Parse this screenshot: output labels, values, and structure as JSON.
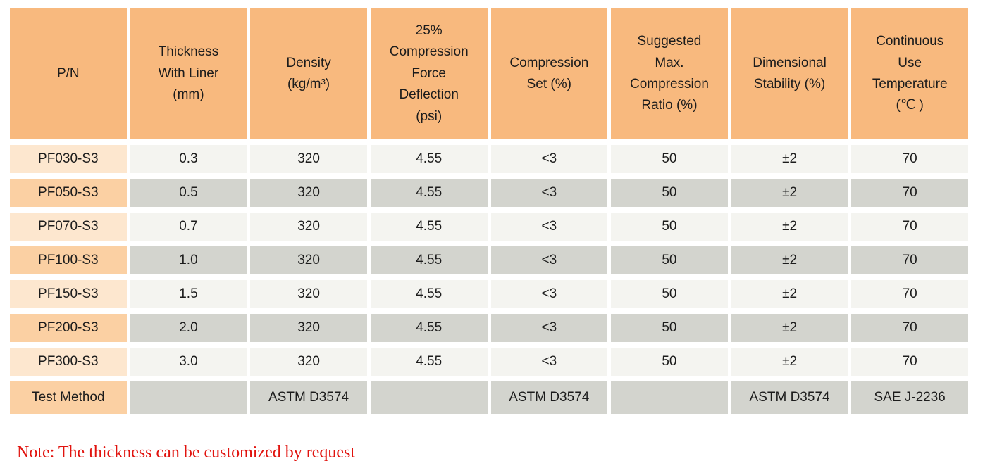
{
  "colors": {
    "header_bg": "#F8B97E",
    "pn_odd_bg": "#FDE7CF",
    "pn_even_bg": "#FBD0A3",
    "data_odd_bg": "#F4F4F0",
    "data_even_bg": "#D3D4CE",
    "note_red": "#E1130E",
    "text": "#1C1C1C"
  },
  "table": {
    "columns": [
      {
        "id": "pn",
        "label": "P/N"
      },
      {
        "id": "thickness-with-liner",
        "label": "Thickness\nWith Liner\n(mm)"
      },
      {
        "id": "density",
        "label": "Density\n(kg/m³)"
      },
      {
        "id": "compression-force-deflection",
        "label": "25%\nCompression\nForce\nDeflection\n(psi)"
      },
      {
        "id": "compression-set",
        "label": "Compression\nSet (%)"
      },
      {
        "id": "suggested-max-compression-ratio",
        "label": "Suggested\nMax.\nCompression\nRatio (%)"
      },
      {
        "id": "dimensional-stability",
        "label": "Dimensional\nStability (%)"
      },
      {
        "id": "continuous-use-temperature",
        "label": "Continuous\nUse\nTemperature\n(℃ )"
      }
    ],
    "rows": [
      {
        "pn": "PF030-S3",
        "values": [
          "0.3",
          "320",
          "4.55",
          "<3",
          "50",
          "±2",
          "70"
        ]
      },
      {
        "pn": "PF050-S3",
        "values": [
          "0.5",
          "320",
          "4.55",
          "<3",
          "50",
          "±2",
          "70"
        ]
      },
      {
        "pn": "PF070-S3",
        "values": [
          "0.7",
          "320",
          "4.55",
          "<3",
          "50",
          "±2",
          "70"
        ]
      },
      {
        "pn": "PF100-S3",
        "values": [
          "1.0",
          "320",
          "4.55",
          "<3",
          "50",
          "±2",
          "70"
        ]
      },
      {
        "pn": "PF150-S3",
        "values": [
          "1.5",
          "320",
          "4.55",
          "<3",
          "50",
          "±2",
          "70"
        ]
      },
      {
        "pn": "PF200-S3",
        "values": [
          "2.0",
          "320",
          "4.55",
          "<3",
          "50",
          "±2",
          "70"
        ]
      },
      {
        "pn": "PF300-S3",
        "values": [
          "3.0",
          "320",
          "4.55",
          "<3",
          "50",
          "±2",
          "70"
        ]
      }
    ],
    "test_method_row": {
      "label": "Test Method",
      "values": [
        "",
        "ASTM D3574",
        "",
        "ASTM D3574",
        "",
        "ASTM D3574",
        "SAE J-2236"
      ]
    }
  },
  "note": "Note: The thickness can be customized by request"
}
